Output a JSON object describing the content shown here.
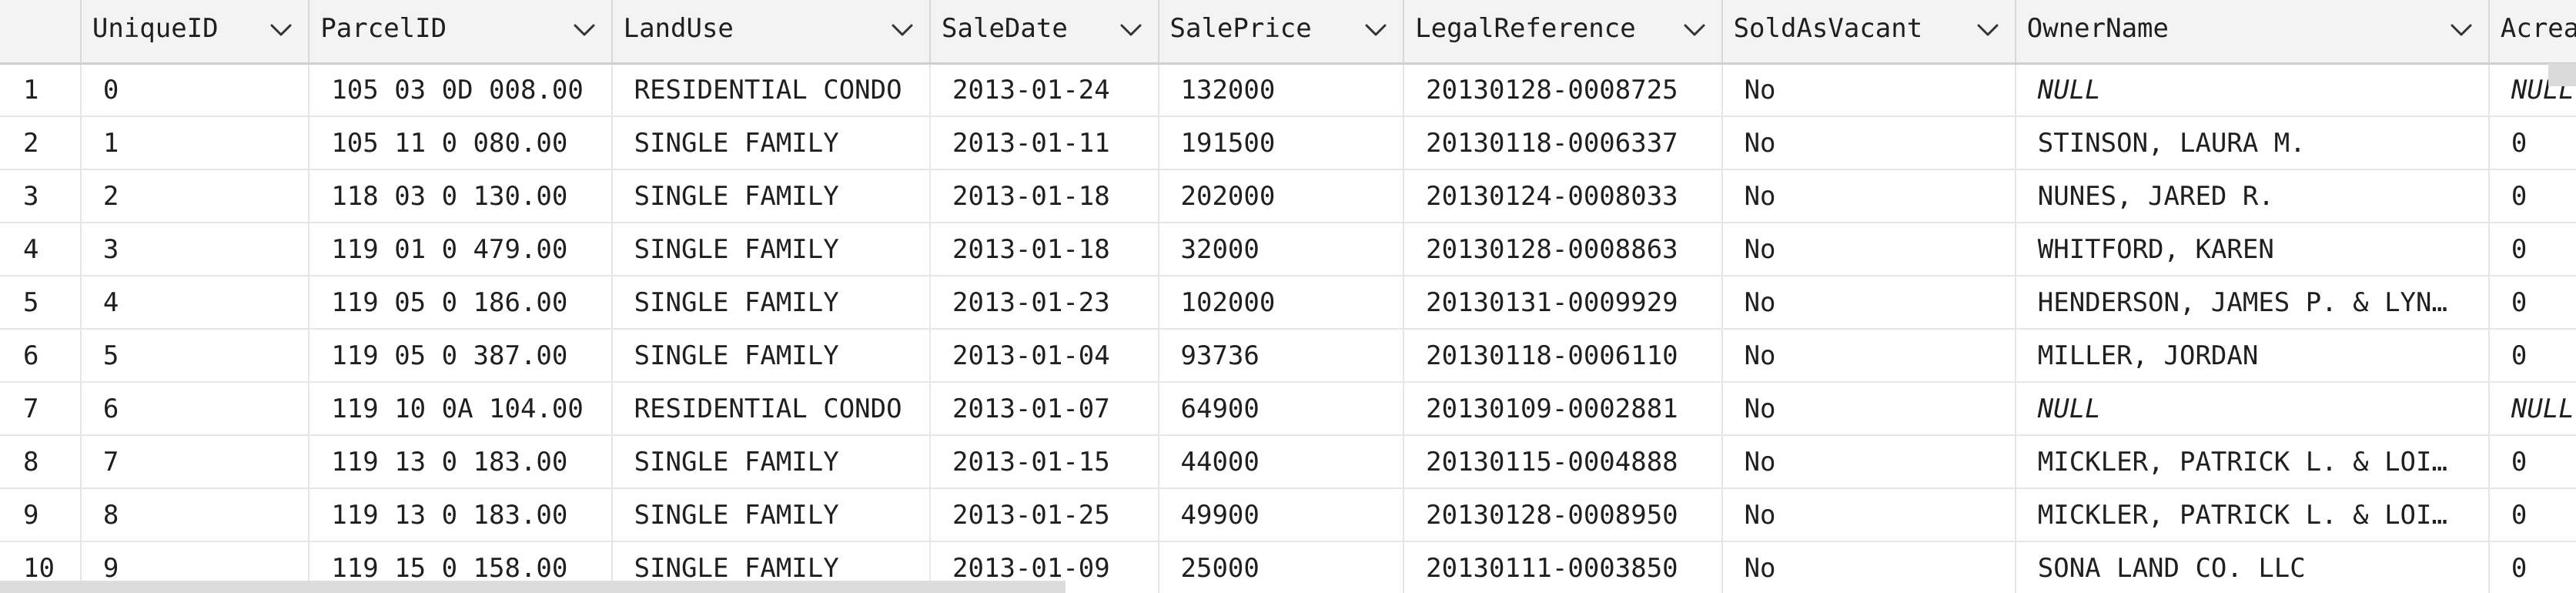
{
  "grid": {
    "columns": [
      {
        "label": "",
        "name": "row-number"
      },
      {
        "label": "UniqueID",
        "name": "uniqueid"
      },
      {
        "label": "ParcelID",
        "name": "parcelid"
      },
      {
        "label": "LandUse",
        "name": "landuse"
      },
      {
        "label": "SaleDate",
        "name": "saledate"
      },
      {
        "label": "SalePrice",
        "name": "saleprice"
      },
      {
        "label": "LegalReference",
        "name": "legalreference"
      },
      {
        "label": "SoldAsVacant",
        "name": "soldasvacant"
      },
      {
        "label": "OwnerName",
        "name": "ownername"
      },
      {
        "label": "Acreage",
        "name": "acreage"
      }
    ],
    "rows": [
      [
        "1",
        "0",
        "105 03 0D 008.00",
        "RESIDENTIAL CONDO",
        "2013-01-24",
        "132000",
        "20130128-0008725",
        "No",
        "NULL",
        "NULL"
      ],
      [
        "2",
        "1",
        "105 11 0 080.00",
        "SINGLE FAMILY",
        "2013-01-11",
        "191500",
        "20130118-0006337",
        "No",
        "STINSON, LAURA M.",
        "0"
      ],
      [
        "3",
        "2",
        "118 03 0 130.00",
        "SINGLE FAMILY",
        "2013-01-18",
        "202000",
        "20130124-0008033",
        "No",
        "NUNES, JARED R.",
        "0"
      ],
      [
        "4",
        "3",
        "119 01 0 479.00",
        "SINGLE FAMILY",
        "2013-01-18",
        "32000",
        "20130128-0008863",
        "No",
        "WHITFORD, KAREN",
        "0"
      ],
      [
        "5",
        "4",
        "119 05 0 186.00",
        "SINGLE FAMILY",
        "2013-01-23",
        "102000",
        "20130131-0009929",
        "No",
        "HENDERSON, JAMES P. & LYN…",
        "0"
      ],
      [
        "6",
        "5",
        "119 05 0 387.00",
        "SINGLE FAMILY",
        "2013-01-04",
        "93736",
        "20130118-0006110",
        "No",
        "MILLER, JORDAN",
        "0"
      ],
      [
        "7",
        "6",
        "119 10 0A 104.00",
        "RESIDENTIAL CONDO",
        "2013-01-07",
        "64900",
        "20130109-0002881",
        "No",
        "NULL",
        "NULL"
      ],
      [
        "8",
        "7",
        "119 13 0 183.00",
        "SINGLE FAMILY",
        "2013-01-15",
        "44000",
        "20130115-0004888",
        "No",
        "MICKLER, PATRICK L. & LOI…",
        "0"
      ],
      [
        "9",
        "8",
        "119 13 0 183.00",
        "SINGLE FAMILY",
        "2013-01-25",
        "49900",
        "20130128-0008950",
        "No",
        "MICKLER, PATRICK L. & LOI…",
        "0"
      ],
      [
        "10",
        "9",
        "119 15 0 158.00",
        "SINGLE FAMILY",
        "2013-01-09",
        "25000",
        "20130111-0003850",
        "No",
        "SONA LAND CO. LLC",
        "0"
      ]
    ],
    "null_text": "NULL"
  },
  "icons": {
    "column_menu": "chevron-down-icon"
  },
  "colors": {
    "header_bg": "#f3f3f3",
    "grid_line": "#e6e6e6",
    "text": "#1f1f1f"
  }
}
